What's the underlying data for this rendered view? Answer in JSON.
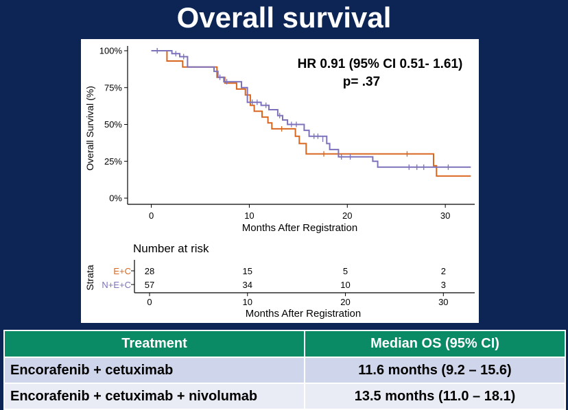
{
  "slide": {
    "title": "Overall survival"
  },
  "chart_data": {
    "type": "line",
    "subtype": "kaplan-meier step",
    "annotation_lines": [
      "HR 0.91 (95% CI  0.51- 1.61)",
      "p= .37"
    ],
    "xlabel": "Months After Registration",
    "ylabel": "Overall Survival (%)",
    "xlim": [
      -2,
      33
    ],
    "ylim": [
      0,
      100
    ],
    "xticks": [
      0,
      10,
      20,
      30
    ],
    "yticks": [
      0,
      25,
      50,
      75,
      100
    ],
    "ytick_labels": [
      "0%",
      "25%",
      "50%",
      "75%",
      "100%"
    ],
    "grid": false,
    "series": [
      {
        "name": "E+C",
        "color": "#d9661f",
        "steps": [
          [
            0,
            100
          ],
          [
            1.6,
            100
          ],
          [
            1.6,
            93
          ],
          [
            3.2,
            93
          ],
          [
            3.2,
            89
          ],
          [
            6.7,
            89
          ],
          [
            6.7,
            82
          ],
          [
            7.5,
            82
          ],
          [
            7.5,
            78
          ],
          [
            8.7,
            78
          ],
          [
            8.7,
            74
          ],
          [
            9.6,
            74
          ],
          [
            9.6,
            70
          ],
          [
            10.1,
            70
          ],
          [
            10.1,
            63
          ],
          [
            10.5,
            63
          ],
          [
            10.5,
            59
          ],
          [
            11.3,
            59
          ],
          [
            11.3,
            55
          ],
          [
            11.9,
            55
          ],
          [
            11.9,
            51
          ],
          [
            12.3,
            51
          ],
          [
            12.3,
            47
          ],
          [
            14.7,
            47
          ],
          [
            14.7,
            42
          ],
          [
            15.1,
            42
          ],
          [
            15.1,
            37
          ],
          [
            15.8,
            37
          ],
          [
            15.8,
            30
          ],
          [
            28.8,
            30
          ],
          [
            28.8,
            22
          ],
          [
            29.1,
            22
          ],
          [
            29.1,
            15
          ],
          [
            32.6,
            15
          ]
        ],
        "censor_marks": [
          [
            0.6,
            100
          ],
          [
            13.3,
            47
          ],
          [
            17.6,
            30
          ],
          [
            26.1,
            30
          ]
        ]
      },
      {
        "name": "N+E+C",
        "color": "#7c72bb",
        "steps": [
          [
            0,
            100
          ],
          [
            2.1,
            100
          ],
          [
            2.1,
            98
          ],
          [
            2.9,
            98
          ],
          [
            2.9,
            96
          ],
          [
            3.7,
            96
          ],
          [
            3.7,
            89
          ],
          [
            6.4,
            89
          ],
          [
            6.4,
            86
          ],
          [
            6.8,
            86
          ],
          [
            6.8,
            82
          ],
          [
            7.4,
            82
          ],
          [
            7.4,
            79
          ],
          [
            9.2,
            79
          ],
          [
            9.2,
            75
          ],
          [
            9.8,
            75
          ],
          [
            9.8,
            65
          ],
          [
            11.2,
            65
          ],
          [
            11.2,
            63
          ],
          [
            12.0,
            63
          ],
          [
            12.0,
            60
          ],
          [
            12.9,
            60
          ],
          [
            12.9,
            56
          ],
          [
            13.4,
            56
          ],
          [
            13.4,
            53
          ],
          [
            13.9,
            53
          ],
          [
            13.9,
            50
          ],
          [
            15.6,
            50
          ],
          [
            15.6,
            46
          ],
          [
            16.1,
            46
          ],
          [
            16.1,
            42
          ],
          [
            17.9,
            42
          ],
          [
            17.9,
            37
          ],
          [
            18.2,
            37
          ],
          [
            18.2,
            33
          ],
          [
            19.1,
            33
          ],
          [
            19.1,
            28
          ],
          [
            22.6,
            28
          ],
          [
            22.6,
            25
          ],
          [
            23.1,
            25
          ],
          [
            23.1,
            21
          ],
          [
            32.6,
            21
          ]
        ],
        "censor_marks": [
          [
            0.6,
            100
          ],
          [
            2.5,
            98
          ],
          [
            3.3,
            96
          ],
          [
            7.0,
            82
          ],
          [
            7.7,
            79
          ],
          [
            10.3,
            65
          ],
          [
            10.8,
            65
          ],
          [
            11.7,
            63
          ],
          [
            13.1,
            56
          ],
          [
            14.3,
            50
          ],
          [
            14.8,
            50
          ],
          [
            16.6,
            42
          ],
          [
            17.0,
            42
          ],
          [
            17.5,
            40
          ],
          [
            19.4,
            28
          ],
          [
            20.3,
            28
          ],
          [
            26.3,
            21
          ],
          [
            27.1,
            21
          ],
          [
            27.8,
            21
          ],
          [
            30.3,
            21
          ]
        ]
      }
    ],
    "risk_table": {
      "title": "Number at risk",
      "axis_label": "Strata",
      "xlabel": "Months After Registration",
      "xticks": [
        0,
        10,
        20,
        30
      ],
      "rows": [
        {
          "label": "E+C",
          "color": "#d9661f",
          "values": [
            "28",
            "15",
            "5",
            "2"
          ]
        },
        {
          "label": "N+E+C",
          "color": "#7c72bb",
          "values": [
            "57",
            "34",
            "10",
            "3"
          ]
        }
      ]
    }
  },
  "table": {
    "headers": [
      "Treatment",
      "Median OS (95% CI)"
    ],
    "rows": [
      [
        "Encorafenib + cetuximab",
        "11.6 months (9.2 – 15.6)"
      ],
      [
        "Encorafenib + cetuximab + nivolumab",
        "13.5 months (11.0 – 18.1)"
      ]
    ]
  }
}
